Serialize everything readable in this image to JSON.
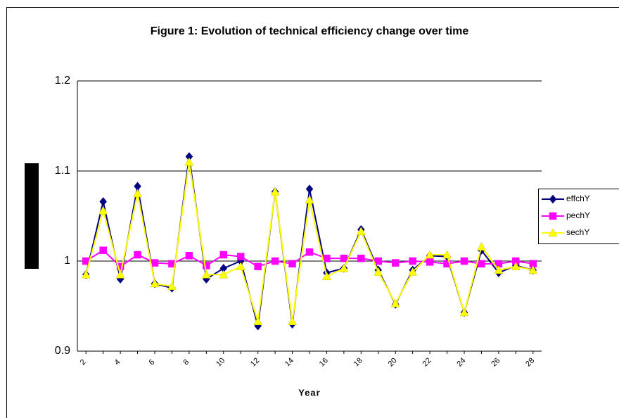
{
  "chart_data": {
    "type": "line",
    "title": "Figure 1: Evolution of technical efficiency change over time",
    "x_label": "Year",
    "categories": [
      "2",
      null,
      "4",
      null,
      "6",
      null,
      "8",
      null,
      "10",
      null,
      "12",
      null,
      "14",
      null,
      "16",
      null,
      "18",
      null,
      "20",
      null,
      "22",
      null,
      "24",
      null,
      "26",
      null,
      "28"
    ],
    "series": [
      {
        "name": "effchY",
        "color": "#000080",
        "marker": "diamond",
        "values": [
          0.985,
          1.066,
          0.98,
          1.083,
          0.975,
          0.97,
          1.116,
          0.98,
          0.992,
          1.0,
          0.928,
          1.077,
          0.93,
          1.08,
          0.987,
          0.992,
          1.035,
          0.99,
          0.952,
          0.99,
          1.006,
          1.005,
          0.943,
          1.012,
          0.987,
          0.995,
          0.99
        ]
      },
      {
        "name": "pechY",
        "color": "#ff00ff",
        "marker": "square",
        "values": [
          1.0,
          1.012,
          0.994,
          1.007,
          0.998,
          0.997,
          1.006,
          0.995,
          1.007,
          1.005,
          0.994,
          1.0,
          0.997,
          1.01,
          1.003,
          1.003,
          1.003,
          1.0,
          0.998,
          1.0,
          0.999,
          0.997,
          1.0,
          0.997,
          0.997,
          1.0,
          0.997
        ]
      },
      {
        "name": "sechY",
        "color": "#ffff00",
        "marker": "triangle",
        "values": [
          0.985,
          1.056,
          0.985,
          1.075,
          0.975,
          0.972,
          1.11,
          0.985,
          0.985,
          0.994,
          0.933,
          1.077,
          0.933,
          1.068,
          0.983,
          0.992,
          1.033,
          0.988,
          0.953,
          0.988,
          1.007,
          1.007,
          0.943,
          1.016,
          0.99,
          0.994,
          0.99
        ]
      }
    ],
    "ylim": [
      0.9,
      1.2
    ],
    "yticks": [
      0.9,
      1,
      1.1,
      1.2
    ],
    "grid": true,
    "legend": "right"
  }
}
